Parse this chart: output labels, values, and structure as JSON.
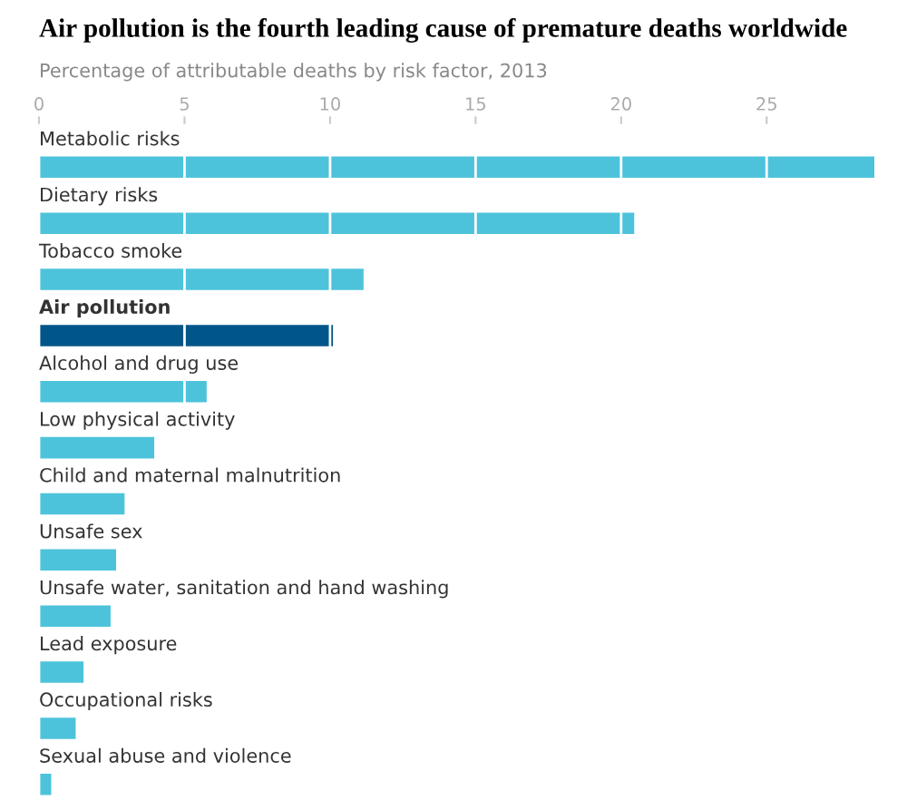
{
  "chart_data": {
    "type": "bar",
    "orientation": "horizontal",
    "title": "Air pollution is the fourth leading cause of premature deaths worldwide",
    "subtitle": "Percentage of attributable deaths by risk factor, 2013",
    "categories": [
      "Metabolic risks",
      "Dietary risks",
      "Tobacco smoke",
      "Air pollution",
      "Alcohol and drug use",
      "Low physical activity",
      "Child and maternal malnutrition",
      "Unsafe sex",
      "Unsafe water, sanitation and hand washing",
      "Lead exposure",
      "Occupational risks",
      "Sexual abuse and violence"
    ],
    "values": [
      28.7,
      20.45,
      11.15,
      10.1,
      5.76,
      3.96,
      2.94,
      2.65,
      2.46,
      1.53,
      1.26,
      0.42
    ],
    "colors": [
      "#4dc3db",
      "#4dc3db",
      "#4dc3db",
      "#005689",
      "#4dc3db",
      "#4dc3db",
      "#4dc3db",
      "#4dc3db",
      "#4dc3db",
      "#4dc3db",
      "#4dc3db",
      "#4dc3db"
    ],
    "xlim": [
      0,
      28.7
    ],
    "xticks": [
      0,
      5,
      10,
      15,
      20,
      25
    ],
    "grid": "x"
  }
}
